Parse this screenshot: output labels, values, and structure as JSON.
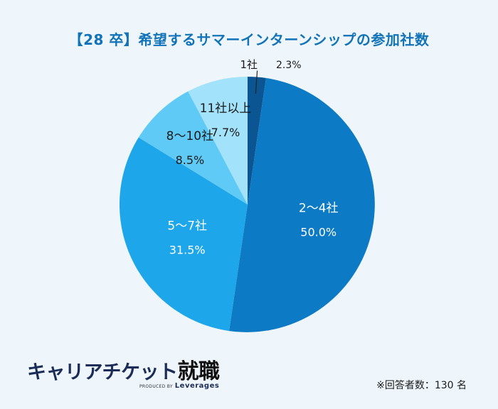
{
  "chart_data": {
    "type": "pie",
    "title": "【28 卒】希望するサマーインターンシップの参加社数",
    "start_angle_deg": 0,
    "direction": "clockwise",
    "slices": [
      {
        "label": "1社",
        "value": 2.3,
        "value_label": "2.3%",
        "color": "#0a5592"
      },
      {
        "label": "2〜4社",
        "value": 50.0,
        "value_label": "50.0%",
        "color": "#0d7ac5"
      },
      {
        "label": "5〜7社",
        "value": 31.5,
        "value_label": "31.5%",
        "color": "#1ea6ea"
      },
      {
        "label": "8〜10社",
        "value": 8.5,
        "value_label": "8.5%",
        "color": "#5ecaf5"
      },
      {
        "label": "11社以上",
        "value": 7.7,
        "value_label": "7.7%",
        "color": "#a3e2fb"
      }
    ]
  },
  "brand": {
    "name_kana": "キャリアチケット",
    "name_kanji": "就職",
    "produced_by": "PRODUCED BY",
    "company": "Leverages"
  },
  "footnote": "※回答者数：130 名"
}
